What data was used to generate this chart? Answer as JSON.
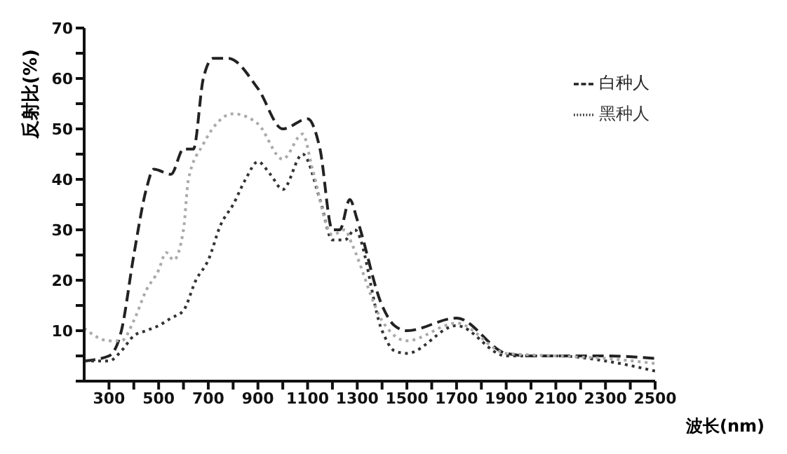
{
  "chart_data": {
    "type": "line",
    "xlabel": "波长(nm)",
    "ylabel": "反射比(%)",
    "xlim": [
      200,
      2500
    ],
    "ylim": [
      0,
      70
    ],
    "xticks": [
      300,
      {
        "value": 400,
        "label": null
      },
      500,
      {
        "value": 600,
        "label": null
      },
      700,
      {
        "value": 800,
        "label": null
      },
      900,
      {
        "value": 1000,
        "label": null
      },
      1100,
      {
        "value": 1200,
        "label": null
      },
      1300,
      {
        "value": 1400,
        "label": null
      },
      1500,
      {
        "value": 1600,
        "label": null
      },
      1700,
      {
        "value": 1800,
        "label": null
      },
      1900,
      {
        "value": 2000,
        "label": null
      },
      2100,
      {
        "value": 2200,
        "label": null
      },
      2300,
      {
        "value": 2400,
        "label": null
      },
      2500
    ],
    "yticks": [
      {
        "value": 0,
        "label": null
      },
      {
        "value": 5,
        "label": null
      },
      10,
      {
        "value": 15,
        "label": null
      },
      20,
      {
        "value": 25,
        "label": null
      },
      30,
      {
        "value": 35,
        "label": null
      },
      40,
      {
        "value": 45,
        "label": null
      },
      50,
      {
        "value": 55,
        "label": null
      },
      60,
      {
        "value": 65,
        "label": null
      },
      70
    ],
    "grid": false,
    "legend": "top right",
    "marker": "none",
    "series": [
      {
        "name": "白种人",
        "color": "#222222",
        "line_style": "dashed",
        "x": [
          200,
          300,
          350,
          400,
          450,
          480,
          550,
          600,
          640,
          680,
          720,
          780,
          900,
          1000,
          1100,
          1150,
          1200,
          1230,
          1270,
          1300,
          1400,
          1450,
          1500,
          1700,
          1900,
          2000,
          2300,
          2500
        ],
        "values": [
          4,
          5,
          10,
          25,
          38,
          42,
          41,
          46,
          46,
          60,
          64,
          64,
          58,
          50,
          52,
          46,
          30,
          30,
          36,
          32,
          15,
          11,
          10,
          12.5,
          5.5,
          5,
          5,
          4.5
        ]
      },
      {
        "name": "黑种人",
        "color": "#333333",
        "line_style": "dotted",
        "x": [
          200,
          300,
          350,
          400,
          450,
          500,
          550,
          600,
          650,
          700,
          750,
          800,
          850,
          900,
          950,
          1000,
          1080,
          1150,
          1200,
          1250,
          1290,
          1400,
          1450,
          1500,
          1700,
          1900,
          2100,
          2300,
          2500
        ],
        "values": [
          4,
          4,
          6,
          9,
          10,
          11,
          12.5,
          14,
          20,
          24,
          31,
          35,
          40,
          43.5,
          41,
          38,
          45,
          36,
          28,
          28,
          30,
          10,
          6,
          5.5,
          11,
          5,
          5,
          4,
          2
        ]
      },
      {
        "color": "#aaaaaa",
        "line_style": "dotted",
        "x": [
          200,
          300,
          350,
          400,
          450,
          500,
          530,
          560,
          600,
          620,
          680,
          800,
          900,
          1000,
          1080,
          1120,
          1200,
          1250,
          1280,
          1400,
          1500,
          1700,
          1900,
          2100,
          2300,
          2500
        ],
        "values": [
          10.5,
          8,
          8,
          12,
          18,
          22,
          25.5,
          24,
          30,
          40,
          47,
          53,
          51,
          44,
          49,
          42,
          29,
          30,
          27,
          12,
          8,
          11.5,
          5.5,
          5,
          4.5,
          3.5
        ]
      }
    ]
  }
}
